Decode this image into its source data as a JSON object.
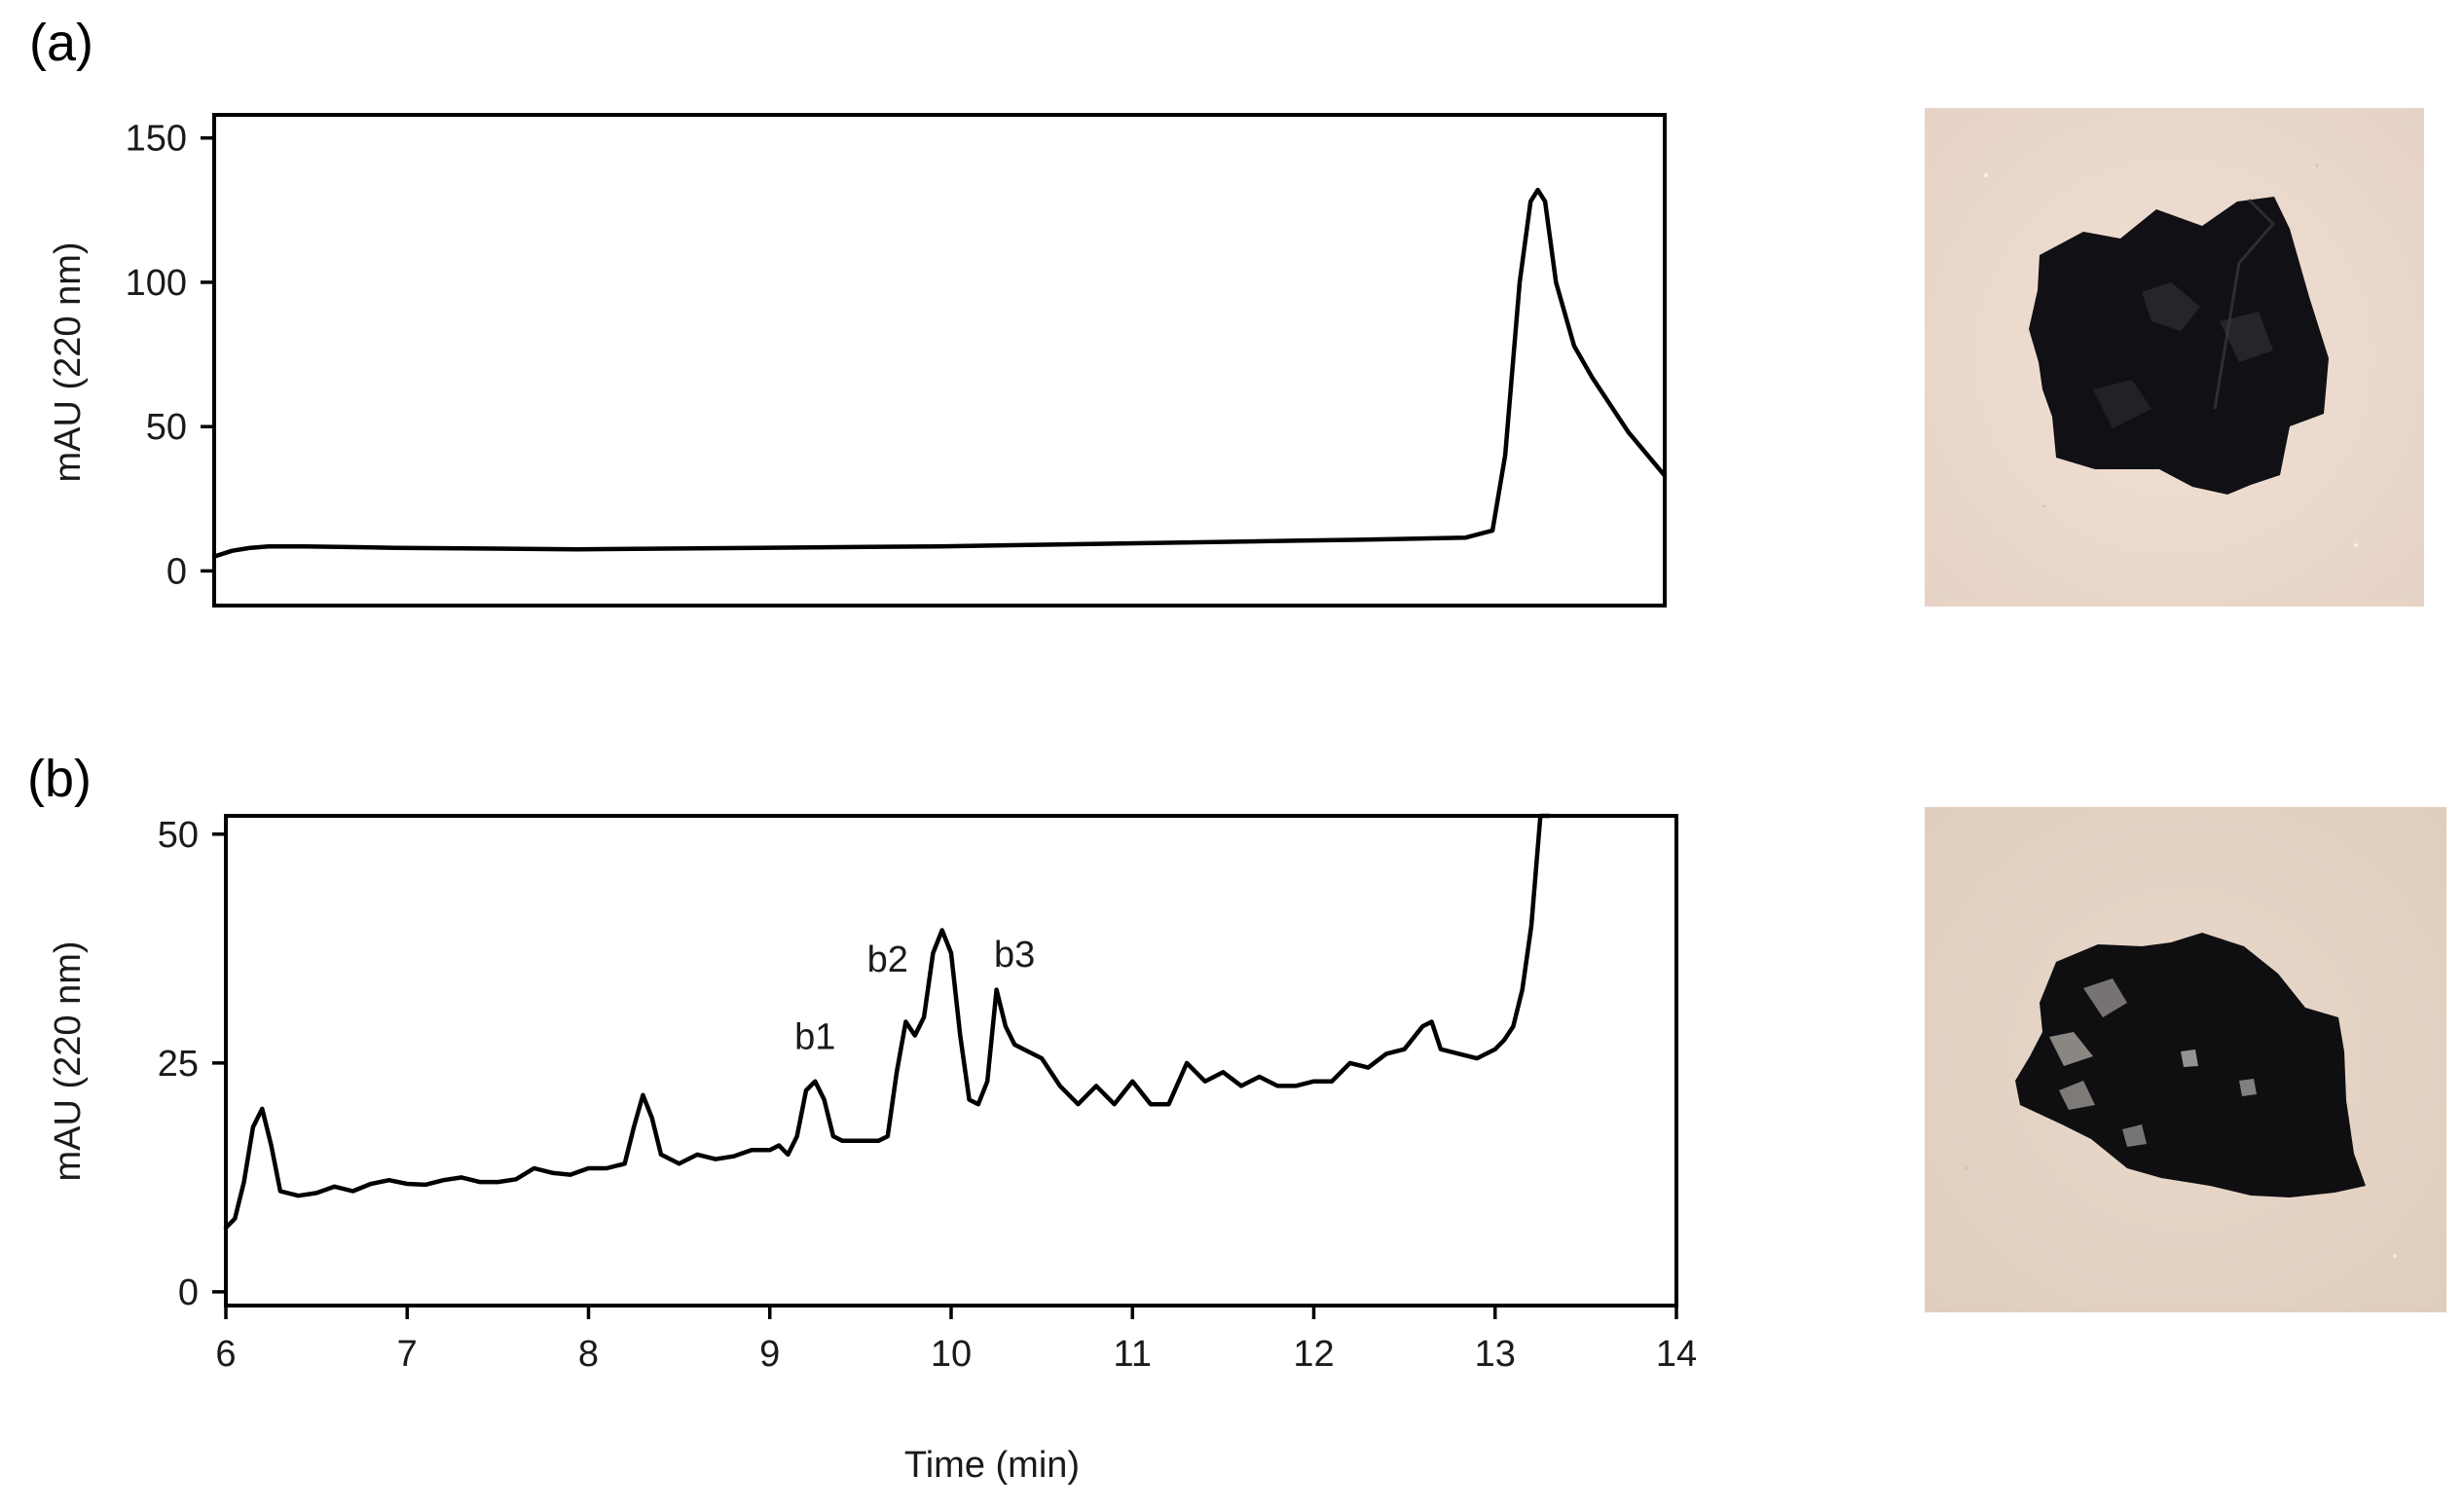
{
  "chart_data": [
    {
      "type": "line",
      "panel_label": "(a)",
      "ylabel": "mAU (220 nm)",
      "xlabel": "",
      "xlim": [
        6,
        14
      ],
      "ylim": [
        -12,
        158
      ],
      "yticks": [
        0,
        50,
        100,
        150
      ],
      "xticks": [],
      "series": [
        {
          "x": [
            6.0,
            6.1,
            6.2,
            6.3,
            6.5,
            7.0,
            8.0,
            9.0,
            10.0,
            11.0,
            12.0,
            12.5,
            12.9,
            13.05,
            13.12,
            13.2,
            13.26,
            13.3,
            13.34,
            13.4,
            13.5,
            13.6,
            13.8,
            14.0
          ],
          "y": [
            5,
            7,
            8,
            8.5,
            8.5,
            8,
            7.5,
            8,
            8.5,
            9.5,
            10.5,
            11,
            11.5,
            14,
            40,
            100,
            128,
            132,
            128,
            100,
            78,
            67,
            48,
            33
          ]
        }
      ],
      "image": "dark-particle-photo"
    },
    {
      "type": "line",
      "panel_label": "(b)",
      "ylabel": "mAU (220 nm)",
      "xlabel": "Time (min)",
      "xlim": [
        6,
        14
      ],
      "ylim": [
        -1.5,
        52
      ],
      "yticks": [
        0,
        25,
        50
      ],
      "xticks": [
        6,
        7,
        8,
        9,
        10,
        11,
        12,
        13,
        14
      ],
      "annotations": [
        {
          "text": "b1",
          "x": 9.25,
          "y": 26.5
        },
        {
          "text": "b2",
          "x": 9.65,
          "y": 35
        },
        {
          "text": "b3",
          "x": 10.35,
          "y": 35.5
        }
      ],
      "series": [
        {
          "x": [
            6.0,
            6.05,
            6.1,
            6.15,
            6.2,
            6.25,
            6.3,
            6.4,
            6.5,
            6.6,
            6.7,
            6.8,
            6.9,
            7.0,
            7.1,
            7.2,
            7.3,
            7.4,
            7.5,
            7.6,
            7.7,
            7.8,
            7.9,
            8.0,
            8.1,
            8.2,
            8.25,
            8.3,
            8.35,
            8.4,
            8.5,
            8.6,
            8.7,
            8.8,
            8.9,
            9.0,
            9.05,
            9.1,
            9.15,
            9.2,
            9.25,
            9.3,
            9.35,
            9.4,
            9.5,
            9.6,
            9.65,
            9.7,
            9.75,
            9.8,
            9.85,
            9.9,
            9.95,
            10.0,
            10.05,
            10.1,
            10.15,
            10.2,
            10.25,
            10.3,
            10.35,
            10.4,
            10.5,
            10.6,
            10.7,
            10.8,
            10.9,
            11.0,
            11.1,
            11.2,
            11.3,
            11.4,
            11.5,
            11.6,
            11.7,
            11.8,
            11.9,
            12.0,
            12.1,
            12.2,
            12.3,
            12.4,
            12.5,
            12.6,
            12.65,
            12.7,
            12.8,
            12.9,
            13.0,
            13.05,
            13.1,
            13.15,
            13.2,
            13.25,
            13.3
          ],
          "y": [
            7,
            8,
            12,
            18,
            20,
            16,
            11,
            10.5,
            10.8,
            11.5,
            11,
            11.8,
            12.2,
            11.8,
            11.7,
            12.2,
            12.5,
            12,
            12,
            12.3,
            13.5,
            13,
            12.8,
            13.5,
            13.5,
            14,
            18,
            21.5,
            19,
            15,
            14,
            15,
            14.5,
            14.8,
            15.5,
            15.5,
            16,
            15,
            17,
            22,
            23,
            21,
            17,
            16.5,
            16.5,
            16.5,
            17,
            24,
            29.5,
            28,
            30,
            37,
            39.5,
            37,
            28,
            21,
            20.5,
            23,
            33,
            29,
            27,
            26.5,
            25.5,
            22.5,
            20.5,
            22.5,
            20.5,
            23,
            20.5,
            20.5,
            25,
            23,
            24,
            22.5,
            23.5,
            22.5,
            22.5,
            23,
            23,
            25,
            24.5,
            26,
            26.5,
            29,
            29.5,
            26.5,
            26,
            25.5,
            26.5,
            27.5,
            29,
            33,
            40,
            52,
            60
          ]
        }
      ],
      "image": "dark-particle-photo"
    }
  ]
}
